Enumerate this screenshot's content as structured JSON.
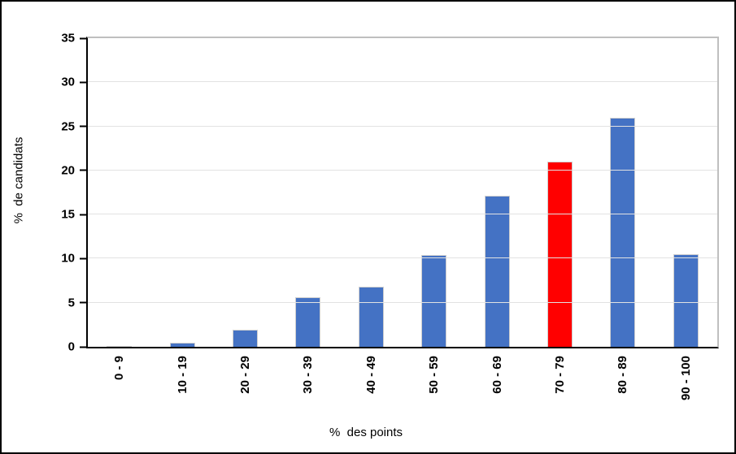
{
  "figure": {
    "background": "#ffffff",
    "frame_color": "#000000"
  },
  "chart_data": {
    "type": "bar",
    "title": "",
    "xlabel": "%  des points",
    "ylabel": "%  de candidats",
    "categories": [
      "0 - 9",
      "10 - 19",
      "20 - 29",
      "30 - 39",
      "40 - 49",
      "50 - 59",
      "60 - 69",
      "70 - 79",
      "80 - 89",
      "90 - 100"
    ],
    "values": [
      0.1,
      0.5,
      1.9,
      5.6,
      6.8,
      10.4,
      17.1,
      21,
      26,
      10.5
    ],
    "highlight_index": 7,
    "default_bar_color": "#4472C4",
    "highlight_bar_color": "#FF0000",
    "ylim": [
      0,
      35
    ],
    "yticks": [
      0,
      5,
      10,
      15,
      20,
      25,
      30,
      35
    ],
    "grid": true,
    "gridline_color": "#e2e2e2",
    "legend": false
  }
}
